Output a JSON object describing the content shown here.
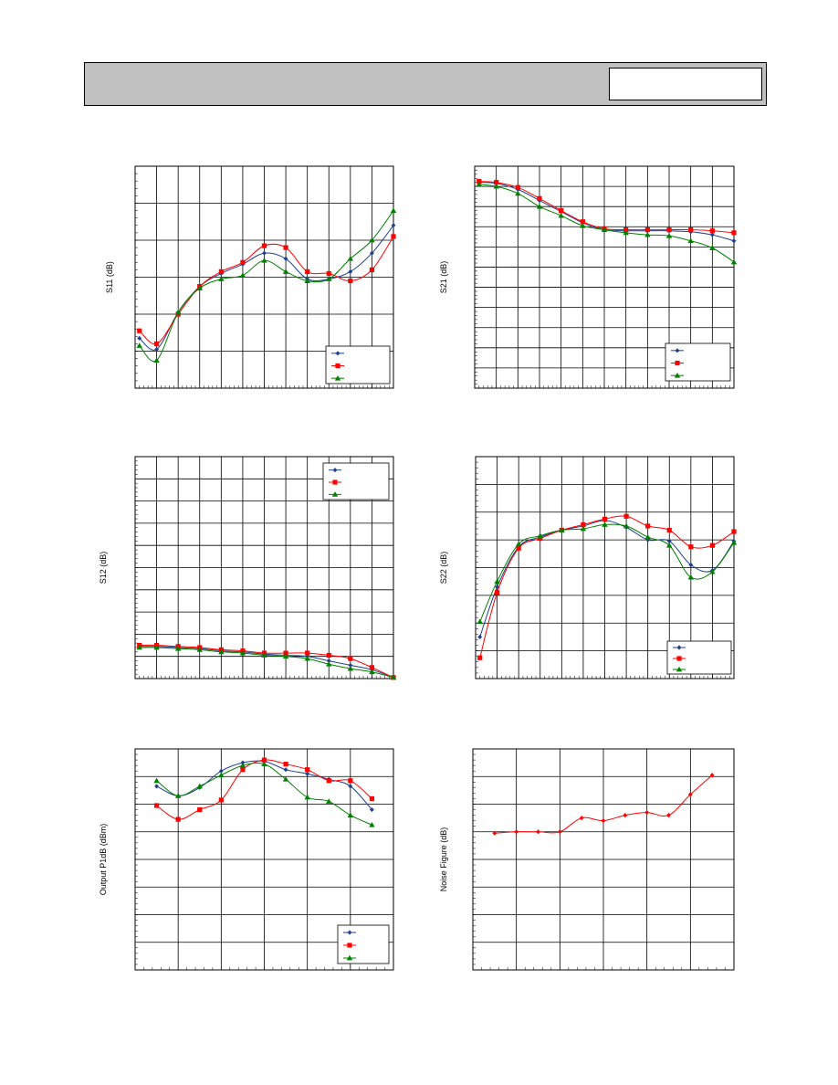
{
  "header": {
    "title": "",
    "part_number": ""
  },
  "colors": {
    "blue": "#1f3f8f",
    "red": "#ff0000",
    "green": "#008000",
    "grid": "#000000"
  },
  "chart_data": [
    {
      "id": "s11",
      "type": "line",
      "title": "",
      "xlabel": "",
      "ylabel": "S11 (dB)",
      "xlim": [
        0,
        12
      ],
      "ylim": [
        0,
        6
      ],
      "x_divisions": 12,
      "y_divisions": 6,
      "legend_position": "bottom-right",
      "series": [
        {
          "color": "blue",
          "marker": "diamond",
          "x": [
            0.2,
            1,
            2,
            3,
            4,
            5,
            6,
            7,
            8,
            9,
            10,
            11,
            12
          ],
          "y": [
            1.35,
            1.05,
            2.05,
            2.75,
            3.1,
            3.35,
            3.65,
            3.5,
            2.95,
            2.95,
            3.15,
            3.65,
            4.4
          ]
        },
        {
          "color": "red",
          "marker": "square",
          "x": [
            0.2,
            1,
            2,
            3,
            4,
            5,
            6,
            7,
            8,
            9,
            10,
            11,
            12
          ],
          "y": [
            1.55,
            1.2,
            2.0,
            2.75,
            3.15,
            3.4,
            3.85,
            3.8,
            3.15,
            3.1,
            2.9,
            3.2,
            4.1
          ]
        },
        {
          "color": "green",
          "marker": "triangle",
          "x": [
            0.2,
            1,
            2,
            3,
            4,
            5,
            6,
            7,
            8,
            9,
            10,
            11,
            12
          ],
          "y": [
            1.15,
            0.75,
            2.05,
            2.7,
            2.95,
            3.05,
            3.45,
            3.15,
            2.9,
            2.95,
            3.5,
            4.0,
            4.8
          ]
        }
      ]
    },
    {
      "id": "s21",
      "type": "line",
      "title": "",
      "xlabel": "",
      "ylabel": "S21 (dB)",
      "xlim": [
        0,
        12
      ],
      "ylim": [
        0,
        11
      ],
      "x_divisions": 12,
      "y_divisions": 11,
      "legend_position": "bottom-right",
      "series": [
        {
          "color": "blue",
          "marker": "diamond",
          "x": [
            0.2,
            1,
            2,
            3,
            4,
            5,
            6,
            7,
            8,
            9,
            10,
            11,
            12
          ],
          "y": [
            10.2,
            10.15,
            9.85,
            9.3,
            8.75,
            8.2,
            7.85,
            7.8,
            7.8,
            7.8,
            7.75,
            7.6,
            7.3
          ]
        },
        {
          "color": "red",
          "marker": "square",
          "x": [
            0.2,
            1,
            2,
            3,
            4,
            5,
            6,
            7,
            8,
            9,
            10,
            11,
            12
          ],
          "y": [
            10.25,
            10.2,
            9.95,
            9.4,
            8.8,
            8.25,
            7.9,
            7.85,
            7.85,
            7.85,
            7.85,
            7.8,
            7.7
          ]
        },
        {
          "color": "green",
          "marker": "triangle",
          "x": [
            0.2,
            1,
            2,
            3,
            4,
            5,
            6,
            7,
            8,
            9,
            10,
            11,
            12
          ],
          "y": [
            10.1,
            10.0,
            9.65,
            9.0,
            8.55,
            8.05,
            7.85,
            7.7,
            7.6,
            7.55,
            7.3,
            6.95,
            6.25
          ]
        }
      ]
    },
    {
      "id": "s12",
      "type": "line",
      "title": "",
      "xlabel": "",
      "ylabel": "S12 (dB)",
      "xlim": [
        0,
        12
      ],
      "ylim": [
        0,
        10
      ],
      "x_divisions": 12,
      "y_divisions": 10,
      "legend_position": "top-right",
      "series": [
        {
          "color": "blue",
          "marker": "diamond",
          "x": [
            0.2,
            1,
            2,
            3,
            4,
            5,
            6,
            7,
            8,
            9,
            10,
            11,
            12
          ],
          "y": [
            1.45,
            1.45,
            1.4,
            1.35,
            1.25,
            1.2,
            1.1,
            1.05,
            1.0,
            0.8,
            0.6,
            0.4,
            0.05
          ]
        },
        {
          "color": "red",
          "marker": "square",
          "x": [
            0.2,
            1,
            2,
            3,
            4,
            5,
            6,
            7,
            8,
            9,
            10,
            11,
            12
          ],
          "y": [
            1.5,
            1.5,
            1.45,
            1.4,
            1.3,
            1.25,
            1.15,
            1.15,
            1.15,
            1.05,
            0.9,
            0.5,
            0.05
          ]
        },
        {
          "color": "green",
          "marker": "triangle",
          "x": [
            0.2,
            1,
            2,
            3,
            4,
            5,
            6,
            7,
            8,
            9,
            10,
            11,
            12
          ],
          "y": [
            1.4,
            1.4,
            1.35,
            1.3,
            1.2,
            1.15,
            1.05,
            1.0,
            0.9,
            0.65,
            0.45,
            0.3,
            0.05
          ]
        }
      ]
    },
    {
      "id": "s22",
      "type": "line",
      "title": "",
      "xlabel": "",
      "ylabel": "S22 (dB)",
      "xlim": [
        0,
        12
      ],
      "ylim": [
        0,
        8
      ],
      "x_divisions": 12,
      "y_divisions": 8,
      "legend_position": "bottom-right",
      "series": [
        {
          "color": "blue",
          "marker": "diamond",
          "x": [
            0.2,
            1,
            2,
            3,
            4,
            5,
            6,
            7,
            8,
            9,
            10,
            11,
            12
          ],
          "y": [
            1.5,
            3.3,
            4.75,
            5.1,
            5.35,
            5.5,
            5.7,
            5.45,
            5.0,
            4.95,
            4.1,
            3.9,
            4.95
          ]
        },
        {
          "color": "red",
          "marker": "square",
          "x": [
            0.2,
            1,
            2,
            3,
            4,
            5,
            6,
            7,
            8,
            9,
            10,
            11,
            12
          ],
          "y": [
            0.75,
            3.1,
            4.7,
            5.05,
            5.35,
            5.55,
            5.75,
            5.85,
            5.5,
            5.35,
            4.75,
            4.8,
            5.3
          ]
        },
        {
          "color": "green",
          "marker": "triangle",
          "x": [
            0.2,
            1,
            2,
            3,
            4,
            5,
            6,
            7,
            8,
            9,
            10,
            11,
            12
          ],
          "y": [
            2.05,
            3.5,
            4.85,
            5.15,
            5.35,
            5.4,
            5.55,
            5.5,
            5.1,
            4.8,
            3.65,
            3.85,
            4.9
          ]
        }
      ]
    },
    {
      "id": "p1db",
      "type": "line",
      "title": "",
      "xlabel": "",
      "ylabel": "Output P1dB (dBm)",
      "xlim": [
        0,
        12
      ],
      "ylim": [
        0,
        8
      ],
      "x_divisions": 6,
      "y_divisions": 8,
      "legend_position": "bottom-right",
      "series": [
        {
          "color": "blue",
          "marker": "diamond",
          "x": [
            1,
            2,
            3,
            4,
            5,
            6,
            7,
            8,
            9,
            10,
            11
          ],
          "y": [
            6.65,
            6.3,
            6.6,
            7.2,
            7.5,
            7.55,
            7.25,
            7.1,
            6.9,
            6.65,
            5.8
          ]
        },
        {
          "color": "red",
          "marker": "square",
          "x": [
            1,
            2,
            3,
            4,
            5,
            6,
            7,
            8,
            9,
            10,
            11
          ],
          "y": [
            5.95,
            5.45,
            5.8,
            6.15,
            7.25,
            7.6,
            7.45,
            7.25,
            6.85,
            6.85,
            6.2
          ]
        },
        {
          "color": "green",
          "marker": "triangle",
          "x": [
            1,
            2,
            3,
            4,
            5,
            6,
            7,
            8,
            9,
            10,
            11
          ],
          "y": [
            6.85,
            6.3,
            6.65,
            7.05,
            7.4,
            7.45,
            6.9,
            6.25,
            6.1,
            5.6,
            5.25
          ]
        }
      ]
    },
    {
      "id": "nf",
      "type": "line",
      "title": "",
      "xlabel": "",
      "ylabel": "Noise Figure (dB)",
      "xlim": [
        0,
        12
      ],
      "ylim": [
        0,
        8
      ],
      "x_divisions": 6,
      "y_divisions": 8,
      "legend_position": "none",
      "series": [
        {
          "color": "red",
          "marker": "diamond",
          "x": [
            1,
            2,
            3,
            4,
            5,
            6,
            7,
            8,
            9,
            10,
            11
          ],
          "y": [
            4.95,
            5.0,
            5.0,
            5.0,
            5.5,
            5.4,
            5.6,
            5.7,
            5.6,
            6.35,
            7.05
          ]
        }
      ]
    }
  ]
}
